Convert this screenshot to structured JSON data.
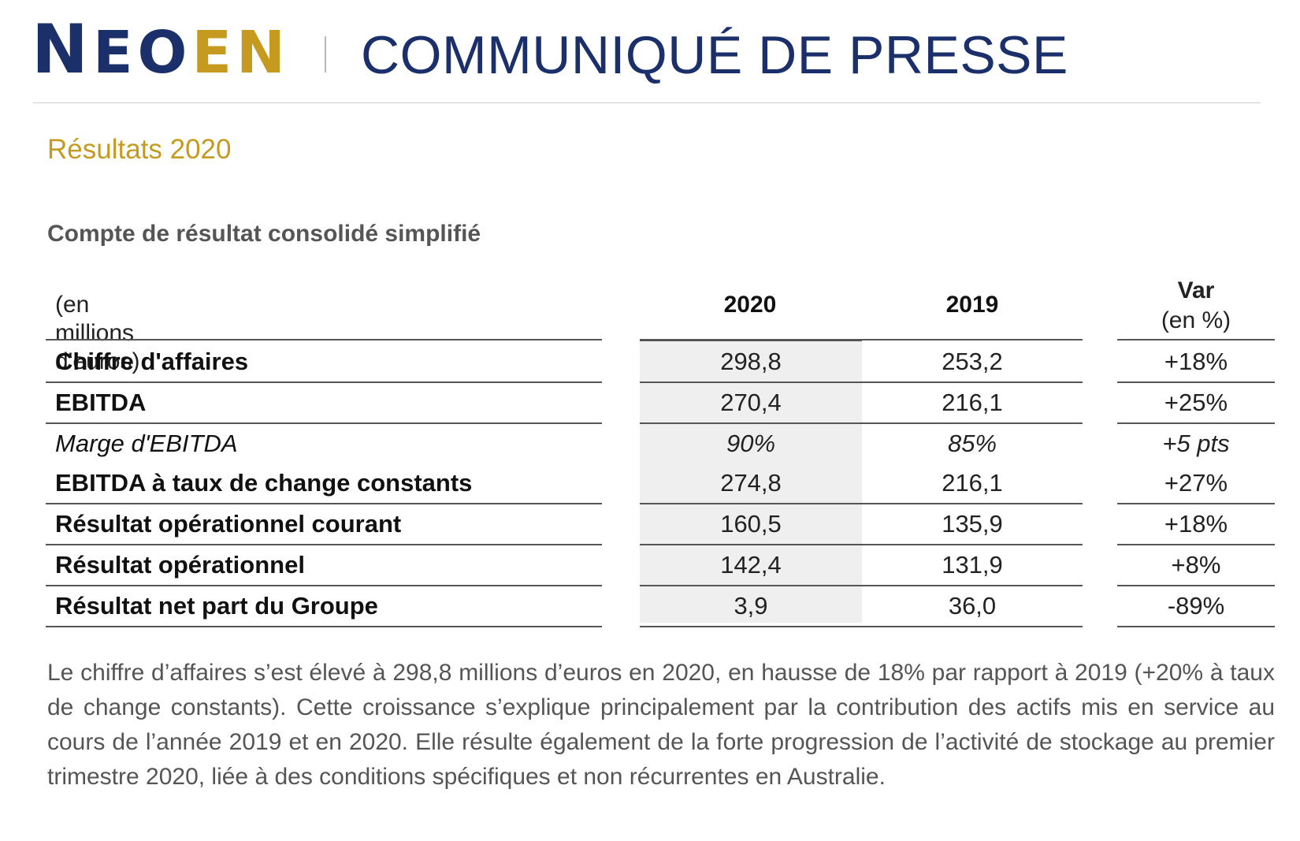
{
  "header": {
    "logo_text": [
      "N",
      "E",
      "O",
      "E",
      "N"
    ],
    "press_title": "COMMUNIQUÉ DE PRESSE"
  },
  "section_title": "Résultats 2020",
  "table": {
    "title": "Compte de résultat consolidé simplifié",
    "unit_label": "(en millions d'euros)",
    "col_2020": "2020",
    "col_2019": "2019",
    "col_var_line1": "Var",
    "col_var_line2": "(en %)",
    "rows": [
      {
        "label": "Chiffre d'affaires",
        "v2020": "298,8",
        "v2019": "253,2",
        "var": "+18%",
        "style": "bold"
      },
      {
        "label": "EBITDA",
        "v2020": "270,4",
        "v2019": "216,1",
        "var": "+25%",
        "style": "bold"
      },
      {
        "label": "Marge d'EBITDA",
        "v2020": "90%",
        "v2019": "85%",
        "var": "+5 pts",
        "style": "italic"
      },
      {
        "label": "EBITDA à taux de change constants",
        "v2020": "274,8",
        "v2019": "216,1",
        "var": "+27%",
        "style": "bold"
      },
      {
        "label": "Résultat opérationnel courant",
        "v2020": "160,5",
        "v2019": "135,9",
        "var": "+18%",
        "style": "bold"
      },
      {
        "label": "Résultat opérationnel",
        "v2020": "142,4",
        "v2019": "131,9",
        "var": "+8%",
        "style": "bold"
      },
      {
        "label": "Résultat net part du Groupe",
        "v2020": "3,9",
        "v2019": "36,0",
        "var": "-89%",
        "style": "bold"
      }
    ]
  },
  "paragraph": "Le chiffre d’affaires s’est élevé à 298,8 millions d’euros en 2020, en hausse de 18% par rapport à 2019 (+20% à taux de change constants). Cette croissance s’explique principalement par la contribution des actifs mis en service au cours de l’année 2019 et en 2020. Elle résulte également de la forte progression de l’activité de stockage au premier trimestre 2020, liée à des conditions spécifiques et non récurrentes en Australie.",
  "colors": {
    "brand_blue": "#1b2f6b",
    "brand_gold": "#c59a1f"
  }
}
